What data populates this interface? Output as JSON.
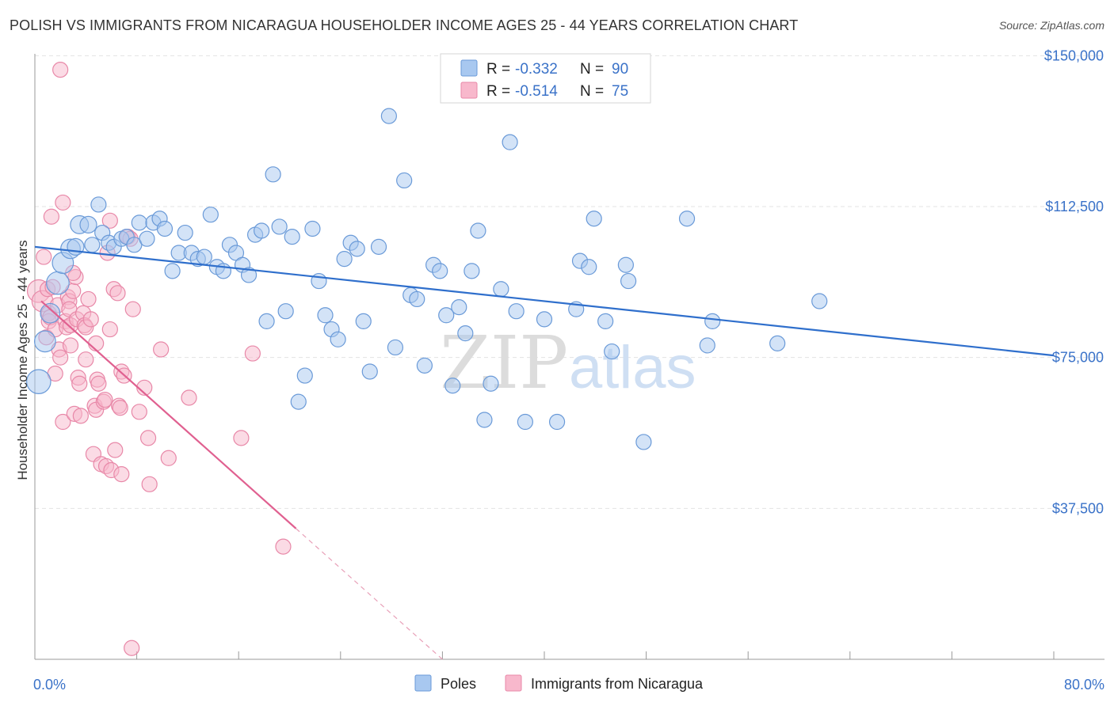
{
  "title": "POLISH VS IMMIGRANTS FROM NICARAGUA HOUSEHOLDER INCOME AGES 25 - 44 YEARS CORRELATION CHART",
  "source": "Source: ZipAtlas.com",
  "colors": {
    "poles_fill": "#a8c8f0",
    "poles_stroke": "#6a9ad8",
    "poles_line": "#2f6fcc",
    "nic_fill": "#f8b8cc",
    "nic_stroke": "#e888a8",
    "nic_line": "#e06090",
    "tick_text": "#3a72c8",
    "grid": "#e3e3e3"
  },
  "watermark": {
    "zip": "ZIP",
    "atlas": "atlas"
  },
  "chart_data": {
    "type": "scatter",
    "title": "POLISH VS IMMIGRANTS FROM NICARAGUA HOUSEHOLDER INCOME AGES 25 - 44 YEARS CORRELATION CHART",
    "xlabel": "",
    "ylabel": "Householder Income Ages 25 - 44 years",
    "xlim": [
      0,
      80
    ],
    "ylim": [
      0,
      154000
    ],
    "x_tick_labels": [
      "0.0%",
      "80.0%"
    ],
    "y_ticks": [
      37500,
      75000,
      112500,
      150000
    ],
    "y_tick_labels": [
      "$37,500",
      "$75,000",
      "$112,500",
      "$150,000"
    ],
    "grid": true,
    "legend_position": "top-center",
    "legend": [
      {
        "r_label": "R =",
        "r_value": "-0.332",
        "n_label": "N =",
        "n_value": "90"
      },
      {
        "r_label": "R =",
        "r_value": "-0.514",
        "n_label": "N =",
        "n_value": "75"
      }
    ],
    "series": [
      {
        "name": "Poles",
        "trend": {
          "x": [
            0,
            80
          ],
          "y": [
            102500,
            75500
          ]
        },
        "points": [
          [
            0.3,
            69000,
            1.6
          ],
          [
            0.8,
            79000,
            1.4
          ],
          [
            1.2,
            86000,
            1.3
          ],
          [
            1.8,
            93500,
            1.5
          ],
          [
            2.2,
            98500,
            1.4
          ],
          [
            2.8,
            102000,
            1.3
          ],
          [
            3.2,
            102500,
            1.1
          ],
          [
            3.5,
            108000,
            1.2
          ],
          [
            4.2,
            108000,
            1.1
          ],
          [
            4.5,
            103000,
            1.0
          ],
          [
            5.0,
            113000,
            1.0
          ],
          [
            5.3,
            106000,
            1.0
          ],
          [
            5.8,
            103500,
            1.0
          ],
          [
            6.2,
            102500,
            1.0
          ],
          [
            6.8,
            104500,
            1.0
          ],
          [
            7.2,
            105000,
            1.0
          ],
          [
            7.8,
            103000,
            1.0
          ],
          [
            8.2,
            108500,
            1.0
          ],
          [
            8.8,
            104500,
            1.0
          ],
          [
            9.3,
            108500,
            1.0
          ],
          [
            9.8,
            109500,
            1.0
          ],
          [
            10.2,
            107000,
            1.0
          ],
          [
            10.8,
            96500,
            1.0
          ],
          [
            11.3,
            101000,
            1.0
          ],
          [
            11.8,
            106000,
            1.0
          ],
          [
            12.3,
            101000,
            1.0
          ],
          [
            12.8,
            99500,
            1.0
          ],
          [
            13.3,
            100000,
            1.0
          ],
          [
            13.8,
            110500,
            1.0
          ],
          [
            14.3,
            97500,
            1.0
          ],
          [
            14.8,
            96500,
            1.0
          ],
          [
            15.3,
            103000,
            1.0
          ],
          [
            15.8,
            101000,
            1.0
          ],
          [
            16.3,
            98000,
            1.0
          ],
          [
            16.8,
            95500,
            1.0
          ],
          [
            17.3,
            105500,
            1.0
          ],
          [
            17.8,
            106500,
            1.0
          ],
          [
            18.2,
            84000,
            1.0
          ],
          [
            18.7,
            120500,
            1.0
          ],
          [
            19.2,
            107500,
            1.0
          ],
          [
            19.7,
            86500,
            1.0
          ],
          [
            20.2,
            105000,
            1.0
          ],
          [
            20.7,
            64000,
            1.0
          ],
          [
            21.2,
            70500,
            1.0
          ],
          [
            21.8,
            107000,
            1.0
          ],
          [
            22.3,
            94000,
            1.0
          ],
          [
            22.8,
            85500,
            1.0
          ],
          [
            23.3,
            82000,
            1.0
          ],
          [
            23.8,
            79500,
            1.0
          ],
          [
            24.3,
            99500,
            1.0
          ],
          [
            24.8,
            103500,
            1.0
          ],
          [
            25.3,
            102000,
            1.0
          ],
          [
            25.8,
            84000,
            1.0
          ],
          [
            26.3,
            71500,
            1.0
          ],
          [
            27.0,
            102500,
            1.0
          ],
          [
            27.8,
            135000,
            1.0
          ],
          [
            28.3,
            77500,
            1.0
          ],
          [
            29.0,
            119000,
            1.0
          ],
          [
            29.5,
            90500,
            1.0
          ],
          [
            30.0,
            89500,
            1.0
          ],
          [
            30.6,
            73000,
            1.0
          ],
          [
            31.3,
            98000,
            1.0
          ],
          [
            31.8,
            96500,
            1.0
          ],
          [
            32.3,
            85500,
            1.0
          ],
          [
            32.8,
            68000,
            1.0
          ],
          [
            33.3,
            87500,
            1.0
          ],
          [
            33.8,
            81000,
            1.0
          ],
          [
            34.3,
            96500,
            1.0
          ],
          [
            34.8,
            106500,
            1.0
          ],
          [
            35.3,
            59500,
            1.0
          ],
          [
            35.8,
            68500,
            1.0
          ],
          [
            36.6,
            92000,
            1.0
          ],
          [
            37.3,
            128500,
            1.0
          ],
          [
            37.8,
            86500,
            1.0
          ],
          [
            38.5,
            59000,
            1.0
          ],
          [
            40.0,
            84500,
            1.0
          ],
          [
            41.0,
            59000,
            1.0
          ],
          [
            42.5,
            87000,
            1.0
          ],
          [
            42.8,
            99000,
            1.0
          ],
          [
            43.5,
            97500,
            1.0
          ],
          [
            43.9,
            109500,
            1.0
          ],
          [
            44.8,
            84000,
            1.0
          ],
          [
            45.3,
            76500,
            1.0
          ],
          [
            46.4,
            98000,
            1.0
          ],
          [
            46.6,
            94000,
            1.0
          ],
          [
            47.8,
            54000,
            1.0
          ],
          [
            51.2,
            109500,
            1.0
          ],
          [
            52.8,
            78000,
            1.0
          ],
          [
            53.2,
            84000,
            1.0
          ],
          [
            58.3,
            78500,
            1.0
          ],
          [
            61.6,
            89000,
            1.0
          ]
        ]
      },
      {
        "name": "Immigrants from Nicaragua",
        "trend": {
          "x": [
            0.5,
            20.5
          ],
          "y": [
            89000,
            32500
          ]
        },
        "trend_dashed": {
          "x": [
            20.5,
            32.0
          ],
          "y": [
            32500,
            0
          ]
        },
        "points": [
          [
            0.3,
            91500,
            1.5
          ],
          [
            0.6,
            89000,
            1.4
          ],
          [
            0.7,
            100000,
            1.0
          ],
          [
            0.9,
            80000,
            1.0
          ],
          [
            1.0,
            92000,
            1.0
          ],
          [
            1.1,
            86000,
            1.0
          ],
          [
            1.1,
            84000,
            1.0
          ],
          [
            1.2,
            85000,
            1.0
          ],
          [
            1.3,
            110000,
            1.0
          ],
          [
            1.4,
            92500,
            1.0
          ],
          [
            1.6,
            82000,
            1.0
          ],
          [
            1.6,
            71000,
            1.0
          ],
          [
            1.8,
            88000,
            1.0
          ],
          [
            1.9,
            77000,
            1.0
          ],
          [
            2.0,
            75000,
            1.0
          ],
          [
            2.2,
            113500,
            1.0
          ],
          [
            2.0,
            146500,
            1.0
          ],
          [
            2.2,
            59000,
            1.0
          ],
          [
            2.4,
            84000,
            1.0
          ],
          [
            2.5,
            82500,
            1.0
          ],
          [
            2.6,
            90000,
            1.0
          ],
          [
            2.7,
            89000,
            1.0
          ],
          [
            2.7,
            87000,
            1.0
          ],
          [
            2.8,
            83000,
            1.0
          ],
          [
            2.8,
            78000,
            1.0
          ],
          [
            3.0,
            91500,
            1.0
          ],
          [
            3.1,
            61000,
            1.0
          ],
          [
            3.2,
            95000,
            1.0
          ],
          [
            3.3,
            84500,
            1.0
          ],
          [
            3.4,
            70000,
            1.0
          ],
          [
            3.5,
            68500,
            1.0
          ],
          [
            3.6,
            60500,
            1.0
          ],
          [
            3.8,
            86000,
            1.0
          ],
          [
            3.9,
            83000,
            1.0
          ],
          [
            4.0,
            82500,
            1.0
          ],
          [
            4.0,
            74500,
            1.0
          ],
          [
            4.2,
            89500,
            1.0
          ],
          [
            4.4,
            84500,
            1.0
          ],
          [
            4.6,
            51000,
            1.0
          ],
          [
            4.7,
            63000,
            1.0
          ],
          [
            4.8,
            62000,
            1.0
          ],
          [
            4.8,
            78500,
            1.0
          ],
          [
            4.9,
            69500,
            1.0
          ],
          [
            5.0,
            68500,
            1.0
          ],
          [
            5.2,
            48500,
            1.0
          ],
          [
            5.4,
            64000,
            1.0
          ],
          [
            5.5,
            64500,
            1.0
          ],
          [
            5.6,
            48000,
            1.0
          ],
          [
            5.7,
            101000,
            1.0
          ],
          [
            5.9,
            109000,
            1.0
          ],
          [
            5.9,
            82000,
            1.0
          ],
          [
            6.0,
            47000,
            1.0
          ],
          [
            6.2,
            92000,
            1.0
          ],
          [
            6.3,
            52000,
            1.0
          ],
          [
            6.5,
            91000,
            1.0
          ],
          [
            6.6,
            63000,
            1.0
          ],
          [
            6.7,
            62500,
            1.0
          ],
          [
            6.8,
            46000,
            1.0
          ],
          [
            6.8,
            71500,
            1.0
          ],
          [
            7.0,
            70500,
            1.0
          ],
          [
            7.3,
            105000,
            1.0
          ],
          [
            7.5,
            104500,
            1.0
          ],
          [
            7.7,
            87000,
            1.0
          ],
          [
            8.2,
            61500,
            1.0
          ],
          [
            8.6,
            67500,
            1.0
          ],
          [
            8.9,
            55000,
            1.0
          ],
          [
            9.0,
            43500,
            1.0
          ],
          [
            9.9,
            77000,
            1.0
          ],
          [
            10.5,
            50000,
            1.0
          ],
          [
            12.1,
            65000,
            1.0
          ],
          [
            16.2,
            55000,
            1.0
          ],
          [
            17.1,
            76000,
            1.0
          ],
          [
            19.5,
            28000,
            1.0
          ],
          [
            7.6,
            2800,
            1.0
          ],
          [
            3.0,
            96000,
            1.0
          ]
        ]
      }
    ]
  }
}
